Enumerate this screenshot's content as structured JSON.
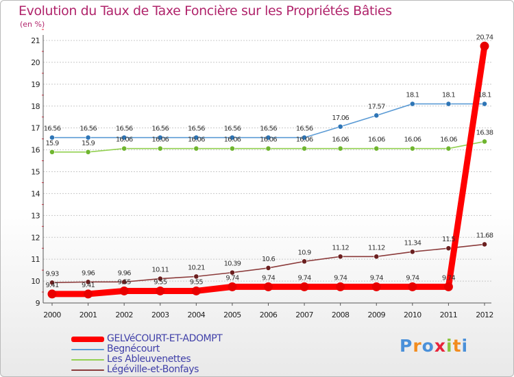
{
  "title": "Evolution du Taux de Taxe Foncière sur les Propriétés Bâties",
  "unit": "(en %)",
  "logo": {
    "text": "Proxiti",
    "colors": [
      "#4a90d9",
      "#f28c1e",
      "#4a90d9",
      "#e8243a",
      "#8bc43f",
      "#f28c1e",
      "#4a90d9"
    ]
  },
  "colors": {
    "grid": "#c8c8c8",
    "axis": "#555555",
    "tick_mark": "#e8243a"
  },
  "chart_data": {
    "type": "line",
    "title": "Evolution du Taux de Taxe Foncière sur les Propriétés Bâties",
    "ylabel": "(en %)",
    "categories": [
      "2000",
      "2001",
      "2002",
      "2003",
      "2004",
      "2005",
      "2006",
      "2007",
      "2008",
      "2009",
      "2010",
      "2011",
      "2012"
    ],
    "ylim": [
      9,
      21
    ],
    "yticks": [
      9,
      10,
      11,
      12,
      13,
      14,
      15,
      16,
      17,
      18,
      19,
      20,
      21
    ],
    "grid": true,
    "legend_position": "bottom-left",
    "series": [
      {
        "name": "Begnécourt",
        "color": "#5b9bd5",
        "dot": "#2e75b6",
        "values": [
          16.56,
          16.56,
          16.56,
          16.56,
          16.56,
          16.56,
          16.56,
          16.56,
          17.06,
          17.57,
          18.1,
          18.1,
          18.1
        ],
        "labels": [
          "16.56",
          "16.56",
          "16.56",
          "16.56",
          "16.56",
          "16.56",
          "16.56",
          "16.56",
          "17.06",
          "17.57",
          "18.1",
          "18.1",
          "18.1"
        ]
      },
      {
        "name": "Les Ableuvenettes",
        "color": "#92d050",
        "dot": "#6fb52f",
        "values": [
          15.9,
          15.9,
          16.06,
          16.06,
          16.06,
          16.06,
          16.06,
          16.06,
          16.06,
          16.06,
          16.06,
          16.06,
          16.38
        ],
        "labels": [
          "15.9",
          "15.9",
          "16.06",
          "16.06",
          "16.06",
          "16.06",
          "16.06",
          "16.06",
          "16.06",
          "16.06",
          "16.06",
          "16.06",
          "16.38"
        ]
      },
      {
        "name": "Légéville-et-Bonfays",
        "color": "#8b3a3a",
        "dot": "#6b1f1f",
        "values": [
          9.93,
          9.96,
          9.96,
          10.11,
          10.21,
          10.39,
          10.6,
          10.9,
          11.12,
          11.12,
          11.34,
          11.5,
          11.68
        ],
        "labels": [
          "9.93",
          "9.96",
          "9.96",
          "10.11",
          "10.21",
          "10.39",
          "10.6",
          "10.9",
          "11.12",
          "11.12",
          "11.34",
          "11.5",
          "11.68"
        ]
      },
      {
        "name": "GELVéCOURT-ET-ADOMPT",
        "color": "#ff0000",
        "dot": "#e80000",
        "values": [
          9.41,
          9.41,
          9.55,
          9.55,
          9.55,
          9.74,
          9.74,
          9.74,
          9.74,
          9.74,
          9.74,
          9.74,
          20.74
        ],
        "labels": [
          "9.41",
          "9.41",
          "9.55",
          "9.55",
          "9.55",
          "9.74",
          "9.74",
          "9.74",
          "9.74",
          "9.74",
          "9.74",
          "9.74",
          "20.74"
        ]
      }
    ]
  },
  "legend": [
    {
      "name": "GELVéCOURT-ET-ADOMPT",
      "color": "#ff0000",
      "thick": true
    },
    {
      "name": "Begnécourt",
      "color": "#5b9bd5",
      "thick": false
    },
    {
      "name": "Les Ableuvenettes",
      "color": "#92d050",
      "thick": false
    },
    {
      "name": "Légéville-et-Bonfays",
      "color": "#8b3a3a",
      "thick": false
    }
  ]
}
